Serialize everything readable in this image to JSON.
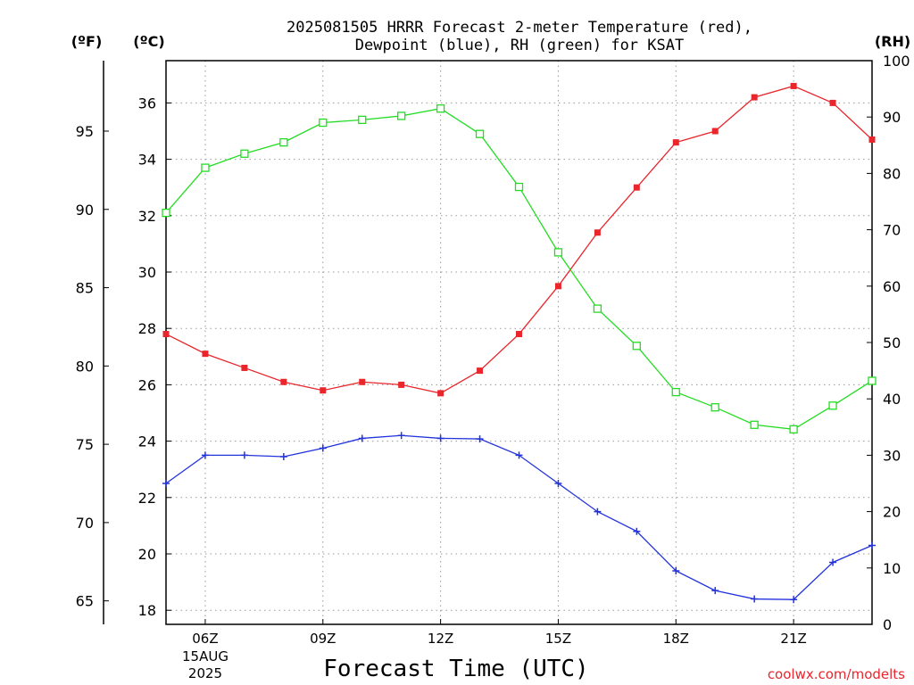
{
  "chart_data": {
    "type": "line",
    "title_line1": "2025081505 HRRR Forecast 2-meter Temperature (red),",
    "title_line2": "Dewpoint (blue), RH (green) for KSAT",
    "xlabel": "Forecast Time (UTC)",
    "unit_f": "(ºF)",
    "unit_c": "(ºC)",
    "unit_rh": "(RH)",
    "watermark": "coolwx.com/modelts",
    "date_label_line1": "15AUG",
    "date_label_line2": "2025",
    "x_hours": [
      5,
      6,
      7,
      8,
      9,
      10,
      11,
      12,
      13,
      14,
      15,
      16,
      17,
      18,
      19,
      20,
      21,
      22,
      23
    ],
    "x_ticks": [
      {
        "hour": 6,
        "label": "06Z"
      },
      {
        "hour": 9,
        "label": "09Z"
      },
      {
        "hour": 12,
        "label": "12Z"
      },
      {
        "hour": 15,
        "label": "15Z"
      },
      {
        "hour": 18,
        "label": "18Z"
      },
      {
        "hour": 21,
        "label": "21Z"
      }
    ],
    "ylim_c": [
      17.5,
      37.5
    ],
    "ylim_rh": [
      0,
      100
    ],
    "y_ticks_c": [
      18,
      20,
      22,
      24,
      26,
      28,
      30,
      32,
      34,
      36
    ],
    "y_ticks_f": [
      65,
      70,
      75,
      80,
      85,
      90,
      95
    ],
    "y_ticks_rh": [
      0,
      10,
      20,
      30,
      40,
      50,
      60,
      70,
      80,
      90,
      100
    ],
    "grid": true,
    "series": [
      {
        "name": "Temperature",
        "color": "#e8262c",
        "marker": "filled-square",
        "axis": "c",
        "values": [
          27.8,
          27.1,
          26.6,
          26.1,
          25.8,
          26.1,
          26.0,
          25.7,
          26.5,
          27.8,
          29.5,
          31.4,
          33.0,
          34.6,
          35.0,
          36.2,
          36.6,
          36.0,
          34.7
        ]
      },
      {
        "name": "Dewpoint",
        "color": "#2233dd",
        "marker": "plus",
        "axis": "c",
        "values": [
          22.5,
          23.5,
          23.5,
          23.45,
          23.75,
          24.1,
          24.2,
          24.1,
          24.08,
          23.5,
          22.5,
          21.5,
          20.8,
          19.4,
          18.7,
          18.4,
          18.38,
          19.7,
          20.3
        ]
      },
      {
        "name": "RH",
        "color": "#22dd22",
        "marker": "open-square",
        "axis": "rh",
        "values": [
          73,
          81,
          83.5,
          85.5,
          89,
          89.5,
          90.2,
          91.5,
          87,
          77.6,
          66,
          56,
          49.4,
          41.2,
          38.5,
          35.4,
          34.6,
          38.8,
          43.2
        ]
      }
    ]
  }
}
